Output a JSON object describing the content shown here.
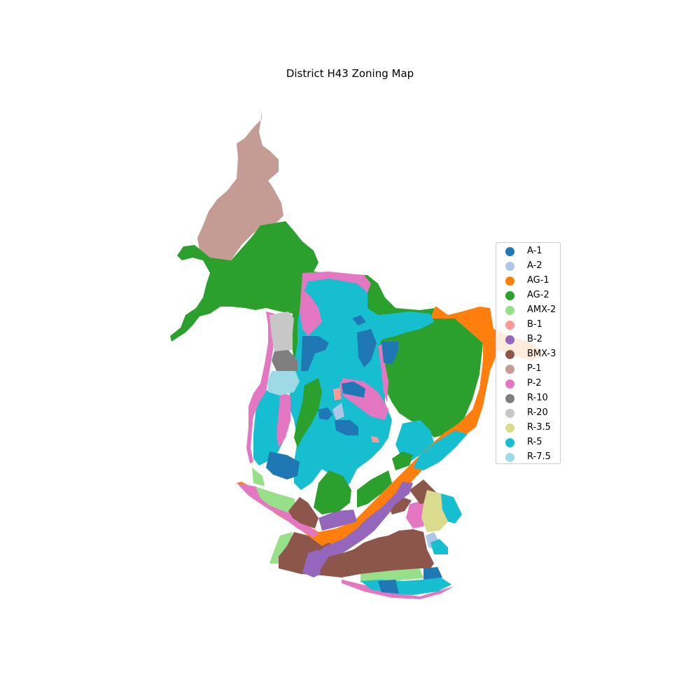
{
  "title": "District H43 Zoning Map",
  "legend": {
    "items": [
      {
        "label": "A-1",
        "color": "#1f77b4"
      },
      {
        "label": "A-2",
        "color": "#aec7e8"
      },
      {
        "label": "AG-1",
        "color": "#ff7f0e"
      },
      {
        "label": "AG-2",
        "color": "#2ca02c"
      },
      {
        "label": "AMX-2",
        "color": "#98df8a"
      },
      {
        "label": "B-1",
        "color": "#ff9896"
      },
      {
        "label": "B-2",
        "color": "#9467bd"
      },
      {
        "label": "BMX-3",
        "color": "#8c564b"
      },
      {
        "label": "P-1",
        "color": "#c49c94"
      },
      {
        "label": "P-2",
        "color": "#e377c2"
      },
      {
        "label": "R-10",
        "color": "#7f7f7f"
      },
      {
        "label": "R-20",
        "color": "#c7c7c7"
      },
      {
        "label": "R-3.5",
        "color": "#dbdb8d"
      },
      {
        "label": "R-5",
        "color": "#17becf"
      },
      {
        "label": "R-7.5",
        "color": "#9edae5"
      }
    ]
  }
}
